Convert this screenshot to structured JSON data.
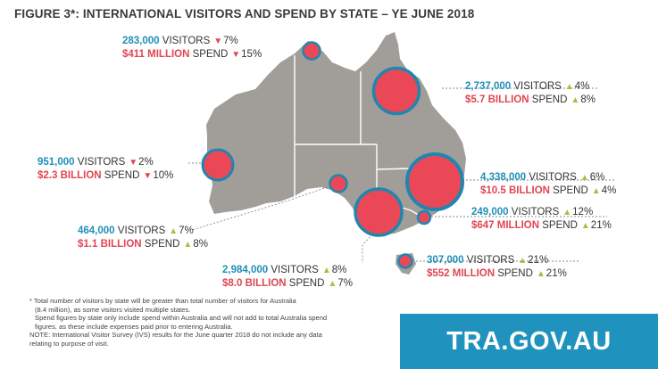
{
  "title": "FIGURE 3*: INTERNATIONAL VISITORS AND SPEND BY STATE – YE JUNE 2018",
  "colors": {
    "map": "#a19d99",
    "bubble_fill": "#ea4856",
    "bubble_stroke": "#1f86b0",
    "visitors_text": "#1f8fb8",
    "spend_text": "#e14552",
    "increase": "#9cc540",
    "decrease": "#e14552",
    "brand": "#1f93bd"
  },
  "chart_data": {
    "type": "bubble-map",
    "states": [
      {
        "id": "nt",
        "visitors": "283,000",
        "visitors_word": "VISITORS",
        "visitors_change": "7%",
        "visitors_dir": "down",
        "spend": "$411 MILLION",
        "spend_word": "SPEND",
        "spend_change": "15%",
        "spend_dir": "down"
      },
      {
        "id": "qld",
        "visitors": "2,737,000",
        "visitors_word": "VISITORS",
        "visitors_change": "4%",
        "visitors_dir": "up",
        "spend": "$5.7 BILLION",
        "spend_word": "SPEND",
        "spend_change": "8%",
        "spend_dir": "up"
      },
      {
        "id": "wa",
        "visitors": "951,000",
        "visitors_word": "VISITORS",
        "visitors_change": "2%",
        "visitors_dir": "down",
        "spend": "$2.3 BILLION",
        "spend_word": "SPEND",
        "spend_change": "10%",
        "spend_dir": "down"
      },
      {
        "id": "nsw",
        "visitors": "4,338,000",
        "visitors_word": "VISITORS",
        "visitors_change": "6%",
        "visitors_dir": "up",
        "spend": "$10.5 BILLION",
        "spend_word": "SPEND",
        "spend_change": "4%",
        "spend_dir": "up"
      },
      {
        "id": "act",
        "visitors": "249,000",
        "visitors_word": "VISITORS",
        "visitors_change": "12%",
        "visitors_dir": "up",
        "spend": "$647 MILLION",
        "spend_word": "SPEND",
        "spend_change": "21%",
        "spend_dir": "up"
      },
      {
        "id": "sa",
        "visitors": "464,000",
        "visitors_word": "VISITORS",
        "visitors_change": "7%",
        "visitors_dir": "up",
        "spend": "$1.1 BILLION",
        "spend_word": "SPEND",
        "spend_change": "8%",
        "spend_dir": "up"
      },
      {
        "id": "vic",
        "visitors": "2,984,000",
        "visitors_word": "VISITORS",
        "visitors_change": "8%",
        "visitors_dir": "up",
        "spend": "$8.0 BILLION",
        "spend_word": "SPEND",
        "spend_change": "7%",
        "spend_dir": "up"
      },
      {
        "id": "tas",
        "visitors": "307,000",
        "visitors_word": "VISITORS",
        "visitors_change": "21%",
        "visitors_dir": "up",
        "spend": "$552 MILLION",
        "spend_word": "SPEND",
        "spend_change": "21%",
        "spend_dir": "up"
      }
    ]
  },
  "footnote": {
    "line1": "* Total number of visitors by state will be greater than total number of visitors for Australia",
    "line2": "(8.4 million), as some visitors visited multiple states.",
    "line3": "Spend figures by state only include spend within Australia and will not add to total Australia spend",
    "line4": "figures, as these include expenses paid prior to entering Australia.",
    "line5": "NOTE: International Visitor Survey (IVS) results for the June quarter 2018 do not include any data",
    "line6": "relating to purpose of visit."
  },
  "brand": "TRA.GOV.AU"
}
